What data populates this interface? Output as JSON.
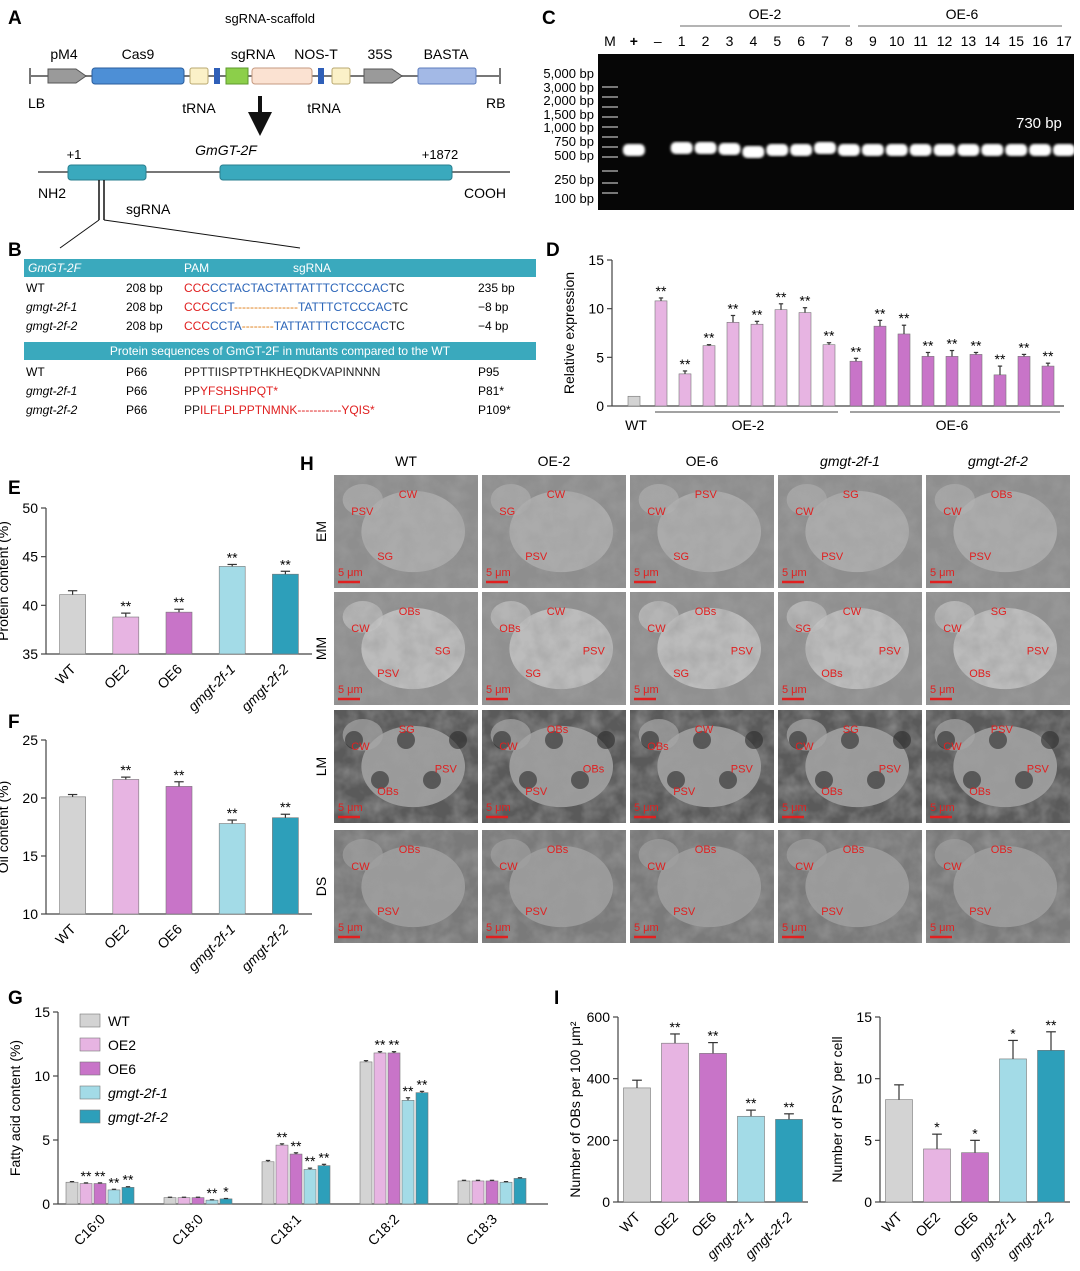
{
  "colors": {
    "wt": "#d3d3d3",
    "oe2": "#e7b4e2",
    "oe6": "#c874c8",
    "m1": "#a3dbe7",
    "m2": "#2d9fba",
    "teal": "#3aa9bd",
    "red": "#e02020",
    "blue": "#2a64b8",
    "orange": "#e0801c"
  },
  "panels": {
    "A": "A",
    "B": "B",
    "C": "C",
    "D": "D",
    "E": "E",
    "F": "F",
    "G": "G",
    "H": "H",
    "I": "I"
  },
  "panelA": {
    "scaffold": "sgRNA-scaffold",
    "pM4": "pM4",
    "cas9": "Cas9",
    "sgrna": "sgRNA",
    "nost": "NOS-T",
    "p35s": "35S",
    "basta": "BASTA",
    "lb": "LB",
    "rb": "RB",
    "trna1": "tRNA",
    "trna2": "tRNA",
    "gene": "GmGT-2F",
    "start": "+1",
    "end": "+1872",
    "nh2": "NH2",
    "cooh": "COOH",
    "sgrna2": "sgRNA"
  },
  "panelB": {
    "header": {
      "gene": "GmGT-2F",
      "pam": "PAM",
      "sg": "sgRNA"
    },
    "dna": [
      {
        "name": "WT",
        "pos": "208 bp",
        "red": "CCC",
        "blue": "CCTACTACTATTATTTCTCCCAC",
        "dash": "",
        "blue2": "",
        "tail": "TC",
        "len": "235 bp"
      },
      {
        "name": "gmgt-2f-1",
        "pos": "208 bp",
        "red": "CCC",
        "blue": "CCT",
        "dash": "----------------",
        "blue2": "TATTTCTCCCAC",
        "tail": "TC",
        "len": "−8 bp"
      },
      {
        "name": "gmgt-2f-2",
        "pos": "208 bp",
        "red": "CCC",
        "blue": "CCTA",
        "dash": "--------",
        "blue2": "TATTATTTCTCCCAC",
        "tail": "TC",
        "len": "−4 bp"
      }
    ],
    "protHeader": "Protein sequences of GmGT-2F in mutants compared to the WT",
    "prot": [
      {
        "name": "WT",
        "pos": "P66",
        "black": "PPTTIISPTPTHKHEQDKVAPINNNN",
        "red": "",
        "end": "P95"
      },
      {
        "name": "gmgt-2f-1",
        "pos": "P66",
        "black": "PP",
        "red": "YFSHSHPQT*",
        "end": "P81*"
      },
      {
        "name": "gmgt-2f-2",
        "pos": "P66",
        "black": "PP",
        "red": "ILFLPLPPTNMNK-----------YQIS*",
        "end": "P109*"
      }
    ]
  },
  "panelC": {
    "groupOE2": "OE-2",
    "groupOE6": "OE-6",
    "lanes": [
      "M",
      "+",
      "–",
      "1",
      "2",
      "3",
      "4",
      "5",
      "6",
      "7",
      "8",
      "9",
      "10",
      "11",
      "12",
      "13",
      "14",
      "15",
      "16",
      "17"
    ],
    "ladder": [
      "5,000 bp",
      "3,000 bp",
      "2,000 bp",
      "1,500 bp",
      "1,000 bp",
      "750 bp",
      "500 bp",
      "250 bp",
      "100 bp"
    ],
    "band": "730 bp"
  },
  "chart_data": [
    {
      "panel": "D",
      "type": "bar",
      "ylabel": "Relative expression",
      "ylim": [
        0,
        15
      ],
      "yticks": [
        0,
        5,
        10,
        15
      ],
      "groups": [
        "WT",
        "OE-2",
        "OE-6"
      ],
      "values": [
        1,
        10.8,
        3.3,
        6.2,
        8.6,
        8.4,
        9.9,
        9.6,
        6.3,
        4.6,
        8.2,
        7.4,
        5.1,
        5.1,
        5.3,
        3.2,
        5.1,
        4.1
      ],
      "errors": [
        0,
        0.3,
        0.3,
        0.1,
        0.7,
        0.3,
        0.6,
        0.5,
        0.2,
        0.3,
        0.6,
        0.9,
        0.4,
        0.6,
        0.2,
        0.9,
        0.2,
        0.3
      ],
      "sig": [
        "",
        "**",
        "**",
        "**",
        "**",
        "**",
        "**",
        "**",
        "**",
        "**",
        "**",
        "**",
        "**",
        "**",
        "**",
        "**",
        "**",
        "**"
      ]
    },
    {
      "panel": "E",
      "type": "bar",
      "ylabel": "Protein content (%)",
      "ylim": [
        35,
        50
      ],
      "yticks": [
        35,
        40,
        45,
        50
      ],
      "categories": [
        "WT",
        "OE2",
        "OE6",
        "gmgt-2f-1",
        "gmgt-2f-2"
      ],
      "values": [
        41.1,
        38.8,
        39.3,
        44.0,
        43.2
      ],
      "errors": [
        0.4,
        0.4,
        0.3,
        0.2,
        0.3
      ],
      "sig": [
        "",
        "**",
        "**",
        "**",
        "**"
      ]
    },
    {
      "panel": "F",
      "type": "bar",
      "ylabel": "Oil content (%)",
      "ylim": [
        10,
        25
      ],
      "yticks": [
        10,
        15,
        20,
        25
      ],
      "categories": [
        "WT",
        "OE2",
        "OE6",
        "gmgt-2f-1",
        "gmgt-2f-2"
      ],
      "values": [
        20.1,
        21.6,
        21.0,
        17.8,
        18.3
      ],
      "errors": [
        0.2,
        0.2,
        0.4,
        0.3,
        0.3
      ],
      "sig": [
        "",
        "**",
        "**",
        "**",
        "**"
      ]
    },
    {
      "panel": "G",
      "type": "bar",
      "ylabel": "Fatty acid content (%)",
      "ylim": [
        0,
        15
      ],
      "yticks": [
        0,
        5,
        10,
        15
      ],
      "categories": [
        "C16:0",
        "C18:0",
        "C18:1",
        "C18:2",
        "C18:3"
      ],
      "series": [
        {
          "name": "WT",
          "values": [
            1.7,
            0.5,
            3.3,
            11.1,
            1.8
          ],
          "errors": [
            0.05,
            0.03,
            0.1,
            0.1,
            0.05
          ],
          "sig": [
            "",
            "",
            "",
            "",
            ""
          ]
        },
        {
          "name": "OE2",
          "values": [
            1.6,
            0.5,
            4.6,
            11.8,
            1.8
          ],
          "errors": [
            0.05,
            0.03,
            0.1,
            0.1,
            0.05
          ],
          "sig": [
            "**",
            "",
            "**",
            "**",
            ""
          ]
        },
        {
          "name": "OE6",
          "values": [
            1.6,
            0.5,
            3.9,
            11.8,
            1.8
          ],
          "errors": [
            0.05,
            0.03,
            0.1,
            0.1,
            0.05
          ],
          "sig": [
            "**",
            "",
            "**",
            "**",
            ""
          ]
        },
        {
          "name": "gmgt-2f-1",
          "values": [
            1.1,
            0.3,
            2.7,
            8.1,
            1.7
          ],
          "errors": [
            0.05,
            0.03,
            0.1,
            0.2,
            0.05
          ],
          "sig": [
            "**",
            "**",
            "**",
            "**",
            ""
          ]
        },
        {
          "name": "gmgt-2f-2",
          "values": [
            1.3,
            0.4,
            3.0,
            8.7,
            2.0
          ],
          "errors": [
            0.05,
            0.03,
            0.1,
            0.1,
            0.05
          ],
          "sig": [
            "**",
            "*",
            "**",
            "**",
            ""
          ]
        }
      ]
    },
    {
      "panel": "I1",
      "type": "bar",
      "ylabel": "Number of OBs per 100 μm²",
      "ylim": [
        0,
        600
      ],
      "yticks": [
        0,
        200,
        400,
        600
      ],
      "categories": [
        "WT",
        "OE2",
        "OE6",
        "gmgt-2f-1",
        "gmgt-2f-2"
      ],
      "values": [
        370,
        515,
        482,
        278,
        268
      ],
      "errors": [
        25,
        30,
        35,
        20,
        18
      ],
      "sig": [
        "",
        "**",
        "**",
        "**",
        "**"
      ]
    },
    {
      "panel": "I2",
      "type": "bar",
      "ylabel": "Number of PSV per cell",
      "ylim": [
        0,
        15
      ],
      "yticks": [
        0,
        5,
        10,
        15
      ],
      "categories": [
        "WT",
        "OE2",
        "OE6",
        "gmgt-2f-1",
        "gmgt-2f-2"
      ],
      "values": [
        8.3,
        4.3,
        4.0,
        11.6,
        12.3
      ],
      "errors": [
        1.2,
        1.2,
        1.0,
        1.5,
        1.5
      ],
      "sig": [
        "",
        "*",
        "*",
        "*",
        "**"
      ]
    }
  ],
  "panelH": {
    "cols": [
      "WT",
      "OE-2",
      "OE-6",
      "gmgt-2f-1",
      "gmgt-2f-2"
    ],
    "rows": [
      "EM",
      "MM",
      "LM",
      "DS"
    ],
    "scale": "5 μm",
    "labels": [
      [
        [
          "PSV",
          "CW",
          "SG"
        ],
        [
          "SG",
          "CW",
          "PSV"
        ],
        [
          "CW",
          "PSV",
          "SG"
        ],
        [
          "CW",
          "SG",
          "PSV"
        ],
        [
          "CW",
          "OBs",
          "PSV"
        ]
      ],
      [
        [
          "CW",
          "OBs",
          "PSV",
          "SG"
        ],
        [
          "OBs",
          "CW",
          "SG",
          "PSV"
        ],
        [
          "CW",
          "OBs",
          "SG",
          "PSV"
        ],
        [
          "SG",
          "CW",
          "OBs",
          "PSV"
        ],
        [
          "CW",
          "SG",
          "OBs",
          "PSV"
        ]
      ],
      [
        [
          "CW",
          "SG",
          "OBs",
          "PSV"
        ],
        [
          "CW",
          "OBs",
          "PSV",
          "OBs"
        ],
        [
          "OBs",
          "CW",
          "PSV",
          "PSV"
        ],
        [
          "CW",
          "SG",
          "OBs",
          "PSV"
        ],
        [
          "CW",
          "PSV",
          "OBs",
          "PSV"
        ]
      ],
      [
        [
          "CW",
          "OBs",
          "PSV"
        ],
        [
          "CW",
          "OBs",
          "PSV"
        ],
        [
          "CW",
          "OBs",
          "PSV"
        ],
        [
          "CW",
          "OBs",
          "PSV"
        ],
        [
          "CW",
          "OBs",
          "PSV"
        ]
      ]
    ]
  }
}
